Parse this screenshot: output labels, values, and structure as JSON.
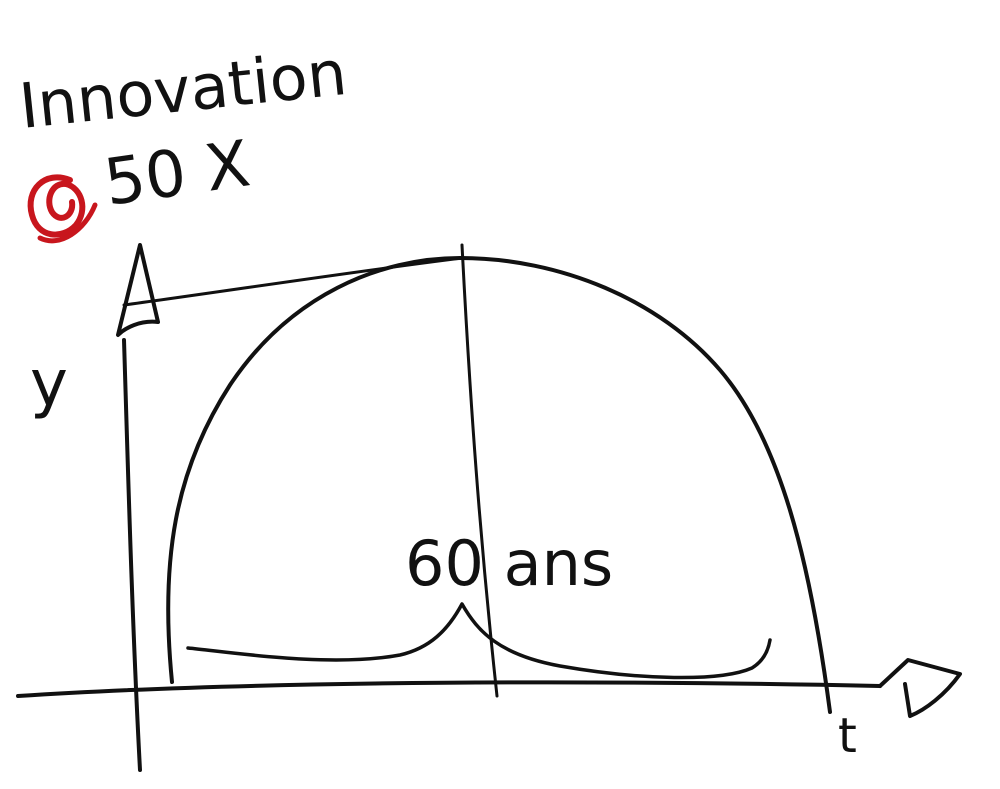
{
  "title": {
    "line1": "Innovation",
    "line2": "50 X"
  },
  "axes": {
    "y_label": "y",
    "x_label": "t"
  },
  "peak_label": "60 ans",
  "colors": {
    "ink": "#111111",
    "accent": "#c8161d",
    "background": "#ffffff"
  },
  "icons": {
    "marker": "red-circle-icon"
  }
}
